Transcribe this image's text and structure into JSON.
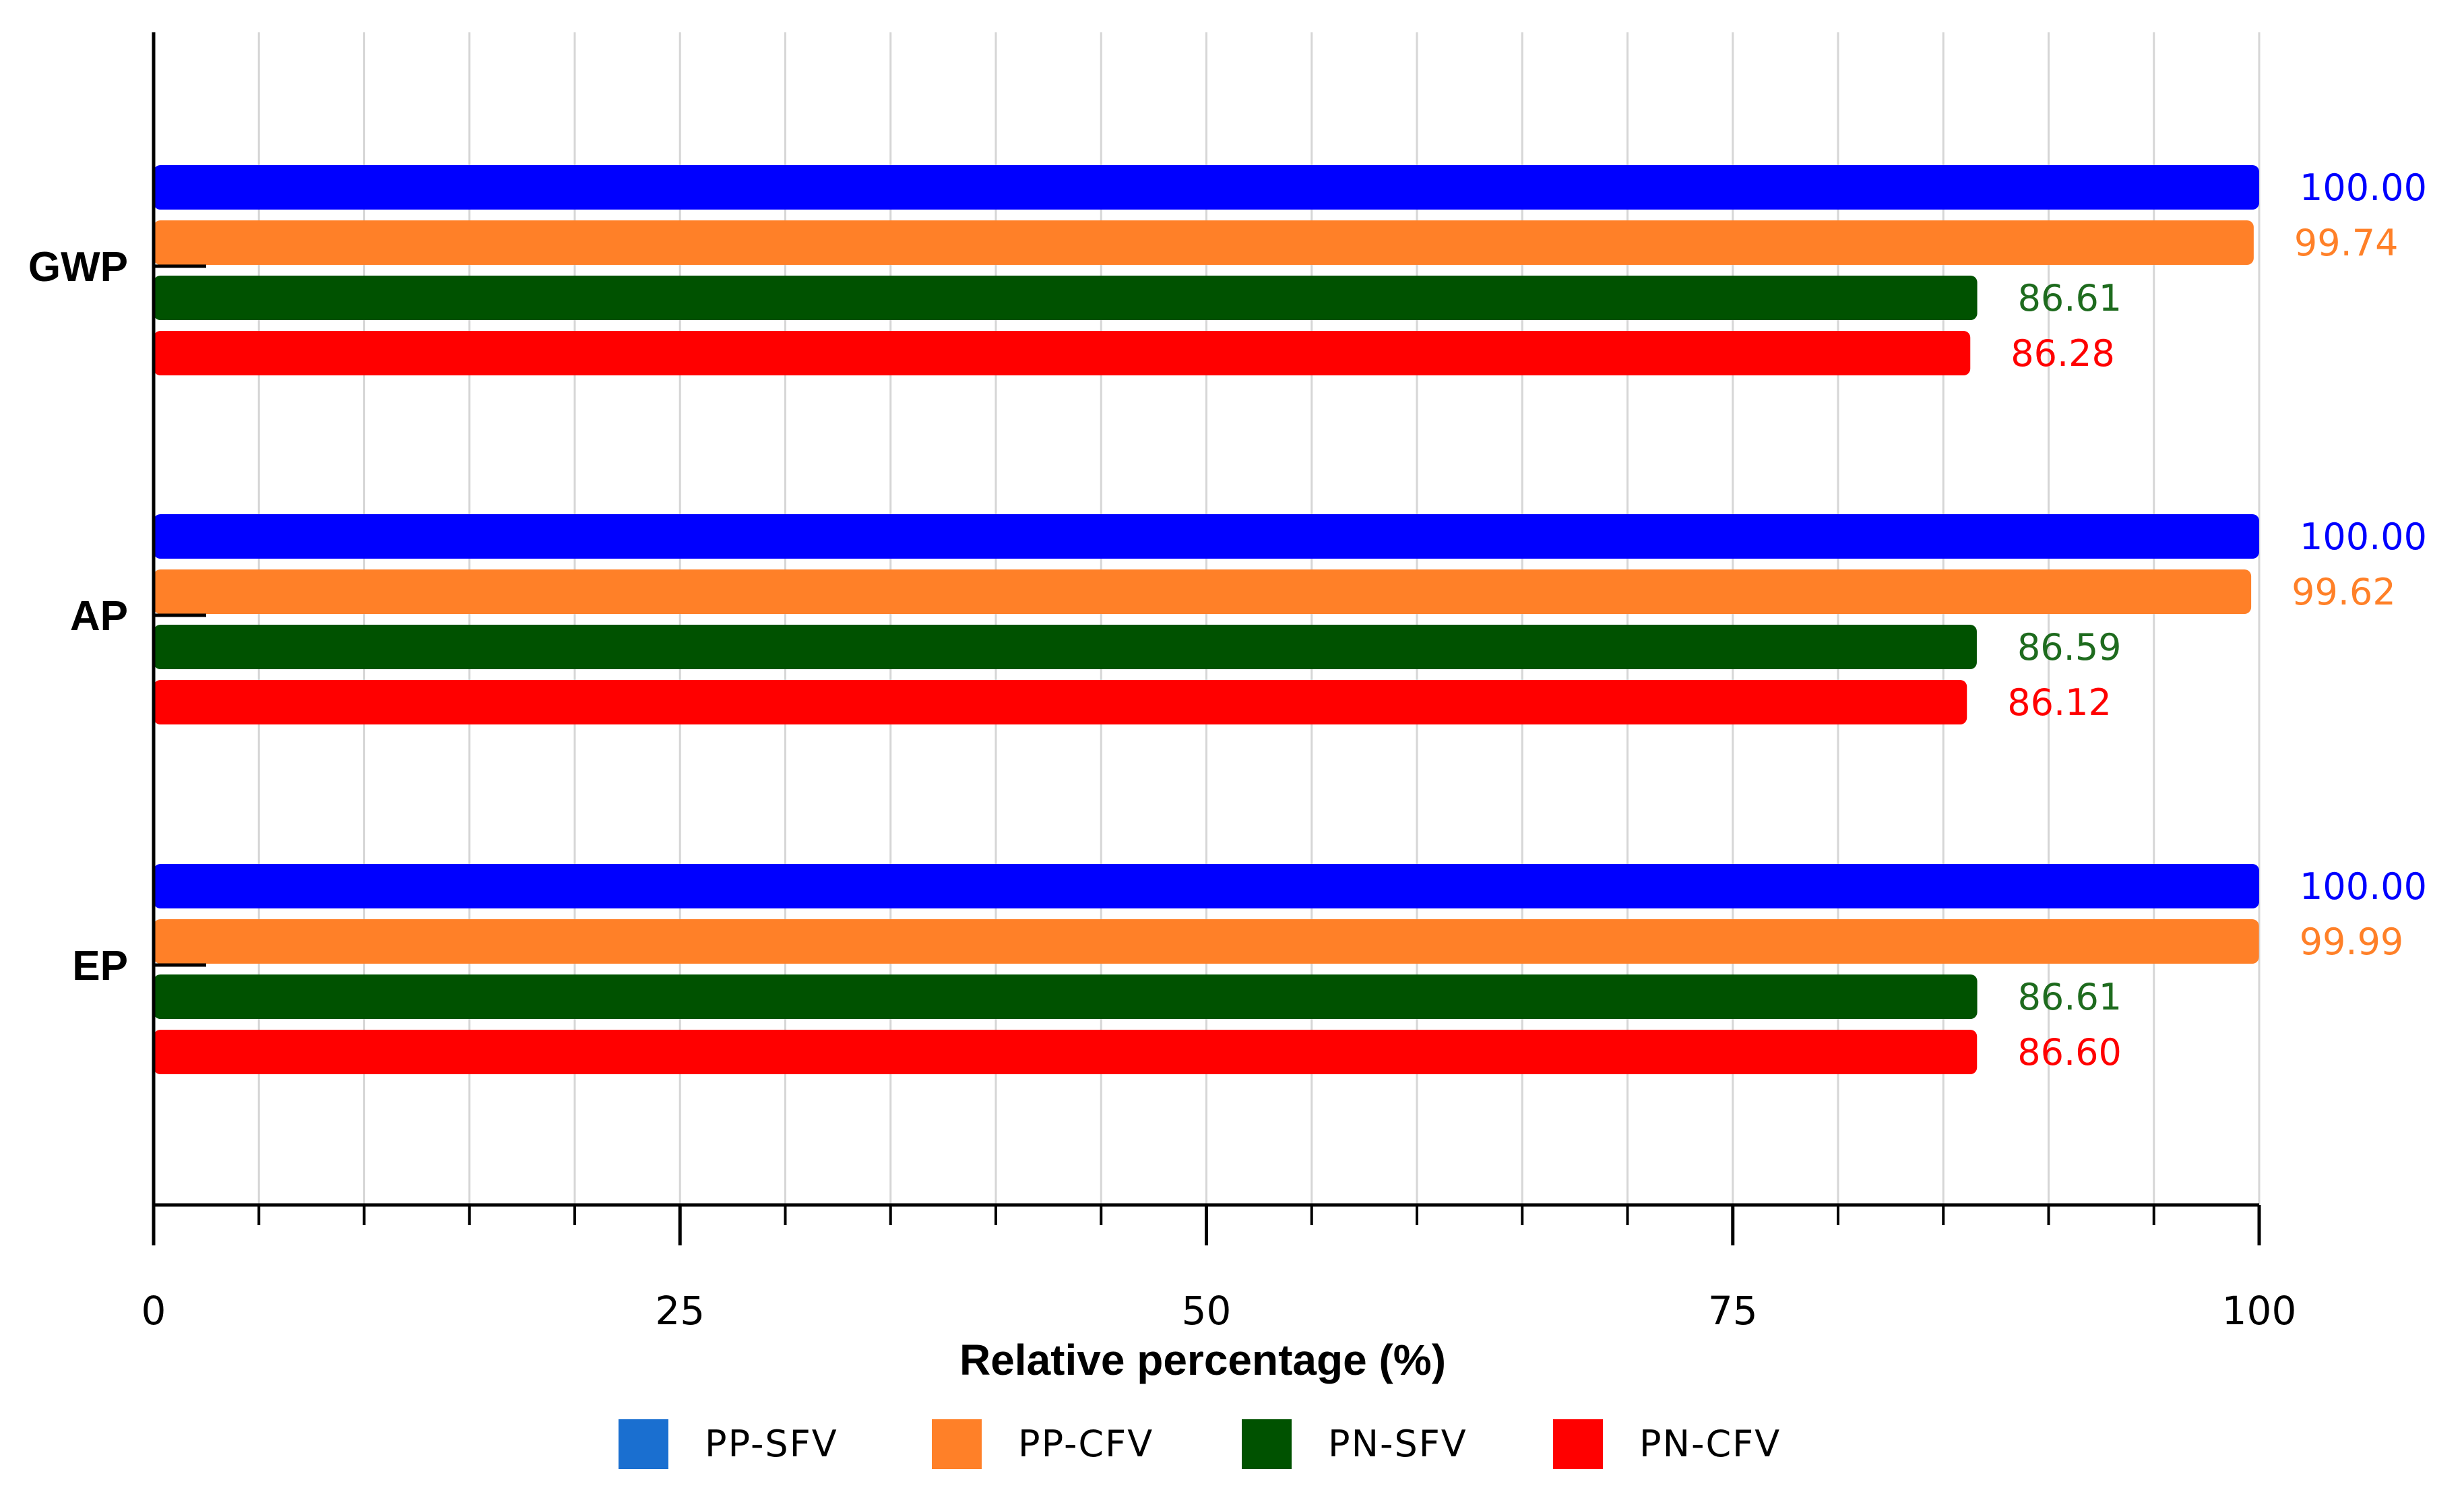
{
  "chart_data": {
    "type": "bar",
    "orientation": "horizontal",
    "categories": [
      "GWP",
      "AP",
      "EP"
    ],
    "series": [
      {
        "name": "PP-SFV",
        "values": [
          100.0,
          100.0,
          100.0
        ],
        "labels": [
          "100.00",
          "100.00",
          "100.00"
        ],
        "color": "#0000FF",
        "legend_color": "#1A6FD0",
        "label_color": "#0000FF"
      },
      {
        "name": "PP-CFV",
        "values": [
          99.74,
          99.62,
          99.99
        ],
        "labels": [
          "99.74",
          "99.62",
          "99.99"
        ],
        "color": "#FF8028",
        "legend_color": "#FF8028",
        "label_color": "#FF8028"
      },
      {
        "name": "PN-SFV",
        "values": [
          86.61,
          86.59,
          86.61
        ],
        "labels": [
          "86.61",
          "86.59",
          "86.61"
        ],
        "color": "#005200",
        "legend_color": "#005200",
        "label_color": "#1E6B1E"
      },
      {
        "name": "PN-CFV",
        "values": [
          86.28,
          86.12,
          86.6
        ],
        "labels": [
          "86.28",
          "86.12",
          "86.60"
        ],
        "color": "#FF0000",
        "legend_color": "#FF0000",
        "label_color": "#FF0000"
      }
    ],
    "xlabel": "Relative percentage (%)",
    "xlim": [
      0,
      100
    ],
    "major_ticks": [
      0,
      25,
      50,
      75,
      100
    ],
    "tick_labels": [
      "0",
      "25",
      "50",
      "75",
      "100"
    ],
    "minor_step": 5,
    "grid": true,
    "legend_position": "bottom"
  }
}
